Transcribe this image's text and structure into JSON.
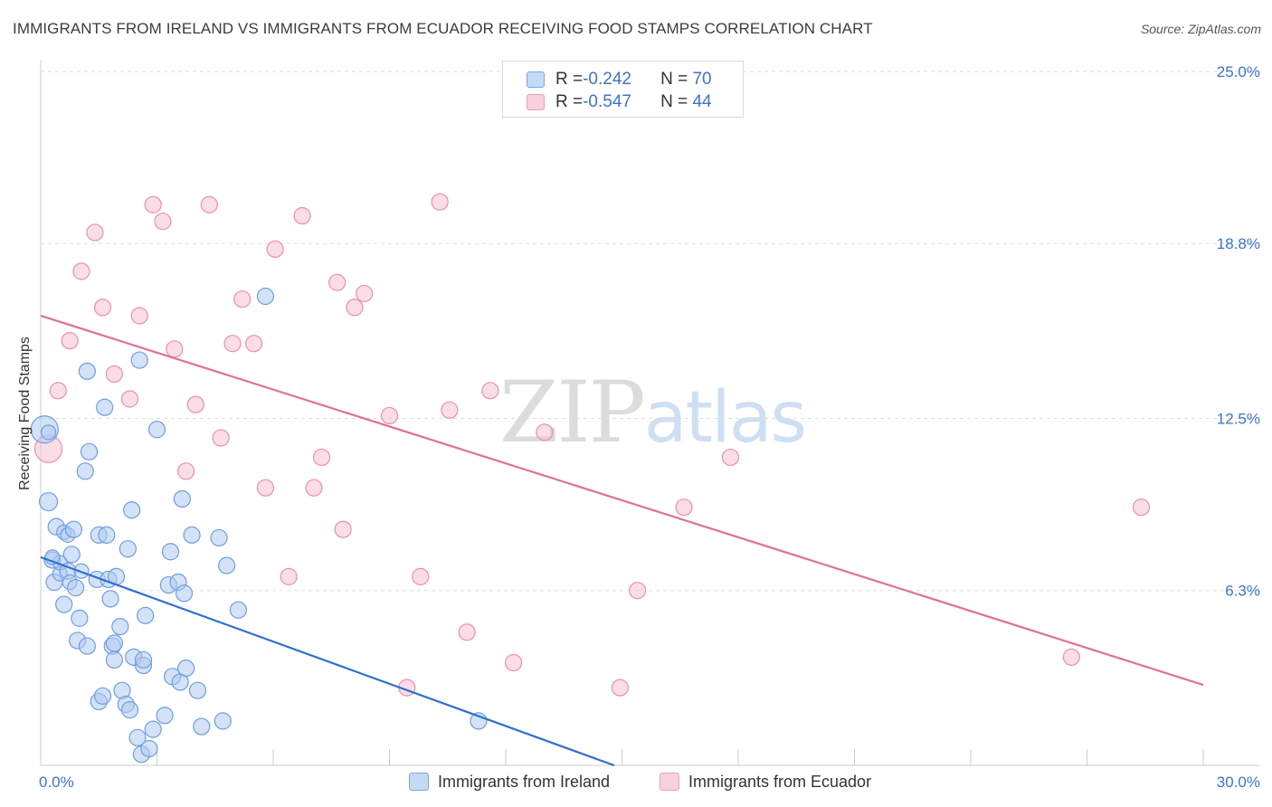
{
  "header": {
    "title": "IMMIGRANTS FROM IRELAND VS IMMIGRANTS FROM ECUADOR RECEIVING FOOD STAMPS CORRELATION CHART",
    "source": "Source: ZipAtlas.com"
  },
  "watermark": {
    "part1": "ZIP",
    "part2": "atlas"
  },
  "legend": {
    "rows": [
      {
        "r_label": "R = ",
        "r_value": "-0.242",
        "n_label": "N = ",
        "n_value": "70"
      },
      {
        "r_label": "R = ",
        "r_value": "-0.547",
        "n_label": "N = ",
        "n_value": "44"
      }
    ]
  },
  "chart_data": {
    "type": "scatter",
    "title": "IMMIGRANTS FROM IRELAND VS IMMIGRANTS FROM ECUADOR RECEIVING FOOD STAMPS CORRELATION CHART",
    "xlabel": "",
    "ylabel": "Receiving Food Stamps",
    "xlim": [
      0,
      30
    ],
    "ylim": [
      0,
      25
    ],
    "x_tick_labels": [
      "0.0%",
      "30.0%"
    ],
    "y_ticks": [
      6.3,
      12.5,
      18.8,
      25.0
    ],
    "y_tick_labels": [
      "6.3%",
      "12.5%",
      "18.8%",
      "25.0%"
    ],
    "legend_position": "bottom",
    "colors": {
      "ireland_fill": "#aecbf0",
      "ireland_stroke": "#6f9ee0",
      "ireland_line": "#2f6fd0",
      "ecuador_fill": "#f6c1d2",
      "ecuador_stroke": "#e890ae",
      "ecuador_line": "#e0709a"
    },
    "series": [
      {
        "name": "Immigrants from Ireland",
        "R": -0.242,
        "N": 70,
        "trend": {
          "x": [
            0,
            14.8
          ],
          "y": [
            7.5,
            0
          ]
        },
        "points": [
          [
            0.1,
            12.1,
            15
          ],
          [
            0.2,
            12.0,
            8
          ],
          [
            0.2,
            9.5,
            10
          ],
          [
            0.3,
            7.4,
            9
          ],
          [
            0.35,
            6.6,
            9
          ],
          [
            0.4,
            8.6,
            9
          ],
          [
            0.5,
            6.9,
            8
          ],
          [
            0.5,
            7.3,
            8
          ],
          [
            0.6,
            5.8,
            9
          ],
          [
            0.6,
            8.4,
            8
          ],
          [
            0.7,
            7.0,
            9
          ],
          [
            0.7,
            8.3,
            8
          ],
          [
            0.75,
            6.6,
            8
          ],
          [
            0.8,
            7.6,
            9
          ],
          [
            0.85,
            8.5,
            9
          ],
          [
            0.9,
            6.4,
            9
          ],
          [
            0.95,
            4.5,
            9
          ],
          [
            1.0,
            5.3,
            9
          ],
          [
            1.05,
            7.0,
            8
          ],
          [
            1.2,
            14.2,
            9
          ],
          [
            1.25,
            11.3,
            9
          ],
          [
            1.15,
            10.6,
            9
          ],
          [
            1.2,
            4.3,
            9
          ],
          [
            1.45,
            6.7,
            9
          ],
          [
            1.5,
            8.3,
            9
          ],
          [
            1.5,
            2.3,
            9
          ],
          [
            1.6,
            2.5,
            9
          ],
          [
            1.65,
            12.9,
            9
          ],
          [
            1.7,
            8.3,
            9
          ],
          [
            1.75,
            6.7,
            9
          ],
          [
            1.8,
            6.0,
            9
          ],
          [
            1.85,
            4.3,
            9
          ],
          [
            1.9,
            3.8,
            9
          ],
          [
            1.9,
            4.4,
            9
          ],
          [
            1.95,
            6.8,
            9
          ],
          [
            2.05,
            5.0,
            9
          ],
          [
            2.1,
            2.7,
            9
          ],
          [
            2.2,
            2.2,
            9
          ],
          [
            2.3,
            2.0,
            9
          ],
          [
            2.25,
            7.8,
            9
          ],
          [
            2.35,
            9.2,
            9
          ],
          [
            2.4,
            3.9,
            9
          ],
          [
            2.5,
            1.0,
            9
          ],
          [
            2.55,
            14.6,
            9
          ],
          [
            2.6,
            0.4,
            9
          ],
          [
            2.65,
            3.6,
            9
          ],
          [
            2.65,
            3.8,
            9
          ],
          [
            2.7,
            5.4,
            9
          ],
          [
            2.8,
            0.6,
            9
          ],
          [
            2.9,
            1.3,
            9
          ],
          [
            3.0,
            12.1,
            9
          ],
          [
            3.2,
            1.8,
            9
          ],
          [
            3.3,
            6.5,
            9
          ],
          [
            3.35,
            7.7,
            9
          ],
          [
            3.4,
            3.2,
            9
          ],
          [
            3.55,
            6.6,
            9
          ],
          [
            3.6,
            3.0,
            9
          ],
          [
            3.65,
            9.6,
            9
          ],
          [
            3.7,
            6.2,
            9
          ],
          [
            3.75,
            3.5,
            9
          ],
          [
            3.9,
            8.3,
            9
          ],
          [
            4.05,
            2.7,
            9
          ],
          [
            4.15,
            1.4,
            9
          ],
          [
            4.6,
            8.2,
            9
          ],
          [
            4.7,
            1.6,
            9
          ],
          [
            4.8,
            7.2,
            9
          ],
          [
            5.1,
            5.6,
            9
          ],
          [
            5.8,
            16.9,
            9
          ],
          [
            11.3,
            1.6,
            9
          ],
          [
            0.3,
            7.5,
            8
          ]
        ]
      },
      {
        "name": "Immigrants from Ecuador",
        "R": -0.547,
        "N": 44,
        "trend": {
          "x": [
            0,
            30
          ],
          "y": [
            16.2,
            2.9
          ]
        },
        "points": [
          [
            0.2,
            11.4,
            15
          ],
          [
            0.45,
            13.5,
            9
          ],
          [
            0.75,
            15.3,
            9
          ],
          [
            1.05,
            17.8,
            9
          ],
          [
            1.4,
            19.2,
            9
          ],
          [
            1.6,
            16.5,
            9
          ],
          [
            1.9,
            14.1,
            9
          ],
          [
            2.3,
            13.2,
            9
          ],
          [
            2.55,
            16.2,
            9
          ],
          [
            2.9,
            20.2,
            9
          ],
          [
            3.15,
            19.6,
            9
          ],
          [
            3.45,
            15.0,
            9
          ],
          [
            3.75,
            10.6,
            9
          ],
          [
            4.0,
            13.0,
            9
          ],
          [
            4.35,
            20.2,
            9
          ],
          [
            4.65,
            11.8,
            9
          ],
          [
            4.95,
            15.2,
            9
          ],
          [
            5.2,
            16.8,
            9
          ],
          [
            5.5,
            15.2,
            9
          ],
          [
            5.8,
            10.0,
            9
          ],
          [
            6.05,
            18.6,
            9
          ],
          [
            6.4,
            6.8,
            9
          ],
          [
            6.75,
            19.8,
            9
          ],
          [
            7.05,
            10.0,
            9
          ],
          [
            7.25,
            11.1,
            9
          ],
          [
            7.65,
            17.4,
            9
          ],
          [
            7.8,
            8.5,
            9
          ],
          [
            8.1,
            16.5,
            9
          ],
          [
            8.35,
            17.0,
            9
          ],
          [
            9.0,
            12.6,
            9
          ],
          [
            9.45,
            2.8,
            9
          ],
          [
            9.8,
            6.8,
            9
          ],
          [
            10.3,
            20.3,
            9
          ],
          [
            10.55,
            12.8,
            9
          ],
          [
            11.0,
            4.8,
            9
          ],
          [
            11.6,
            13.5,
            9
          ],
          [
            12.2,
            3.7,
            9
          ],
          [
            13.0,
            12.0,
            9
          ],
          [
            14.95,
            2.8,
            9
          ],
          [
            15.4,
            6.3,
            9
          ],
          [
            16.6,
            9.3,
            9
          ],
          [
            17.8,
            11.1,
            9
          ],
          [
            26.6,
            3.9,
            9
          ],
          [
            28.4,
            9.3,
            9
          ]
        ]
      }
    ]
  },
  "bottom_legend": [
    "Immigrants from Ireland",
    "Immigrants from Ecuador"
  ]
}
